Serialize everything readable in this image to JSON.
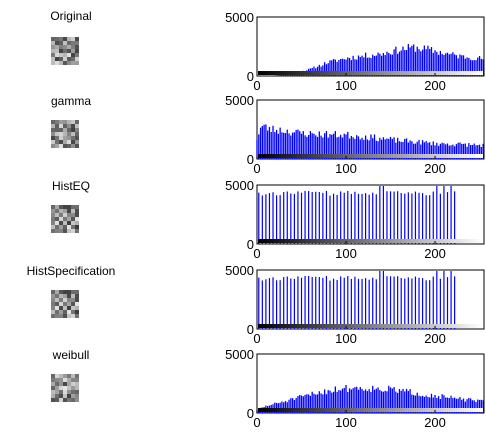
{
  "chart_data": [
    {
      "type": "bar",
      "title": "Original",
      "ylabel": "",
      "xlabel": "",
      "xlim": [
        0,
        255
      ],
      "ylim": [
        0,
        5000
      ],
      "xticks": [
        "0",
        "100",
        "200"
      ],
      "yticks": [
        "0",
        "5000"
      ],
      "profile": [
        [
          0,
          0
        ],
        [
          20,
          50
        ],
        [
          40,
          200
        ],
        [
          60,
          600
        ],
        [
          80,
          1200
        ],
        [
          100,
          1550
        ],
        [
          120,
          1750
        ],
        [
          140,
          1950
        ],
        [
          160,
          2300
        ],
        [
          175,
          2500
        ],
        [
          190,
          2350
        ],
        [
          210,
          2000
        ],
        [
          230,
          1700
        ],
        [
          245,
          1600
        ],
        [
          255,
          1500
        ]
      ],
      "bar_step": 2,
      "seed": 11,
      "bar_color": "#0000ff"
    },
    {
      "type": "bar",
      "title": "gamma",
      "ylabel": "",
      "xlabel": "",
      "xlim": [
        0,
        255
      ],
      "ylim": [
        0,
        5000
      ],
      "xticks": [
        "0",
        "100",
        "200"
      ],
      "yticks": [
        "0",
        "5000"
      ],
      "profile": [
        [
          0,
          1800
        ],
        [
          5,
          2900
        ],
        [
          15,
          2600
        ],
        [
          30,
          2500
        ],
        [
          45,
          2300
        ],
        [
          60,
          2200
        ],
        [
          80,
          2150
        ],
        [
          100,
          2100
        ],
        [
          120,
          1950
        ],
        [
          140,
          1800
        ],
        [
          160,
          1600
        ],
        [
          180,
          1500
        ],
        [
          200,
          1350
        ],
        [
          220,
          1300
        ],
        [
          240,
          1250
        ],
        [
          255,
          1200
        ]
      ],
      "bar_step": 2,
      "seed": 23,
      "bar_color": "#0000ff"
    },
    {
      "type": "bar",
      "title": "HistEQ",
      "ylabel": "",
      "xlabel": "",
      "xlim": [
        0,
        255
      ],
      "ylim": [
        0,
        5000
      ],
      "xticks": [
        "0",
        "100",
        "200"
      ],
      "yticks": [
        "0",
        "5000"
      ],
      "spike_range": [
        2,
        225
      ],
      "spike_step": 4,
      "spike_base": 4300,
      "spike_high": 5200,
      "seed": 37,
      "bar_color": "#0000ff"
    },
    {
      "type": "bar",
      "title": "HistSpecification",
      "ylabel": "",
      "xlabel": "",
      "xlim": [
        0,
        255
      ],
      "ylim": [
        0,
        5000
      ],
      "xticks": [
        "0",
        "100",
        "200"
      ],
      "yticks": [
        "0",
        "5000"
      ],
      "spike_range": [
        2,
        225
      ],
      "spike_step": 4,
      "spike_base": 4300,
      "spike_high": 5200,
      "seed": 37,
      "bar_color": "#0000ff"
    },
    {
      "type": "bar",
      "title": "weibull",
      "ylabel": "",
      "xlabel": "",
      "xlim": [
        0,
        255
      ],
      "ylim": [
        0,
        5000
      ],
      "xticks": [
        "0",
        "100",
        "200"
      ],
      "yticks": [
        "0",
        "5000"
      ],
      "profile": [
        [
          0,
          300
        ],
        [
          10,
          600
        ],
        [
          30,
          1000
        ],
        [
          50,
          1400
        ],
        [
          70,
          1800
        ],
        [
          90,
          2100
        ],
        [
          110,
          2200
        ],
        [
          130,
          2150
        ],
        [
          150,
          2050
        ],
        [
          170,
          1850
        ],
        [
          190,
          1600
        ],
        [
          210,
          1400
        ],
        [
          230,
          1200
        ],
        [
          255,
          1000
        ]
      ],
      "bar_step": 2,
      "seed": 51,
      "bar_color": "#0000ff"
    }
  ]
}
